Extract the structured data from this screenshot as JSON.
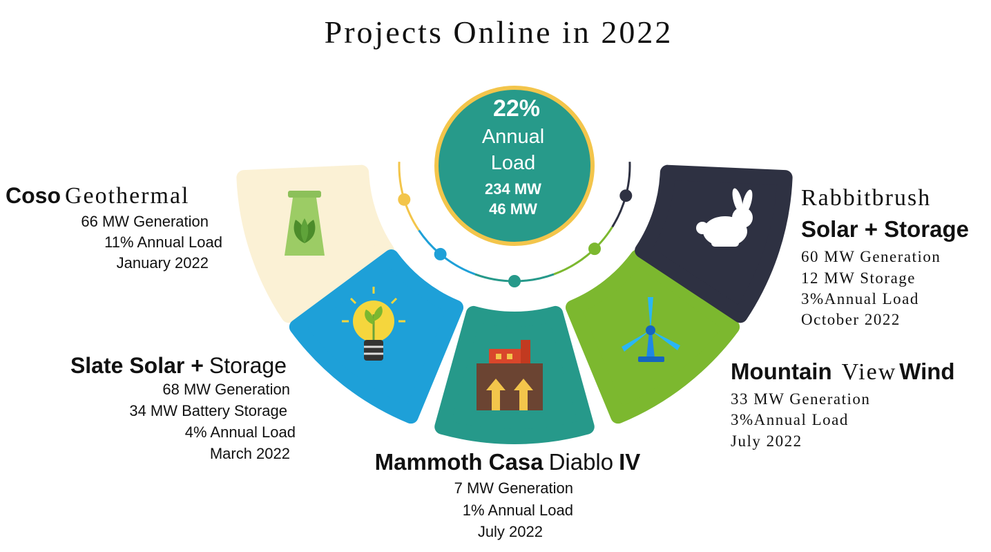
{
  "title": "Projects Online in 2022",
  "center": {
    "lines": [
      "22%",
      "Annual",
      "Load",
      "234 MW",
      "46 MW"
    ]
  },
  "projects": [
    {
      "name": [
        "Coso",
        "Geothermal"
      ],
      "details": [
        "66 MW Generation",
        "11% Annual Load",
        "January 2022"
      ]
    },
    {
      "name": [
        "Slate Solar +",
        "Storage"
      ],
      "details": [
        "68 MW Generation",
        "34 MW Battery Storage",
        "4% Annual Load",
        "March 2022"
      ]
    },
    {
      "name": [
        "Mammoth Casa",
        "Diablo",
        "IV"
      ],
      "details": [
        "7 MW Generation",
        "1% Annual Load",
        "July 2022"
      ]
    },
    {
      "name": [
        "Mountain",
        "View",
        "Wind"
      ],
      "details": [
        "33 MW Generation",
        "3%Annual Load",
        "July 2022"
      ]
    },
    {
      "name": [
        "Rabbitbrush",
        "Solar + Storage"
      ],
      "details": [
        "60 MW Generation",
        "12 MW Storage",
        "3%Annual Load",
        "October 2022"
      ]
    }
  ]
}
